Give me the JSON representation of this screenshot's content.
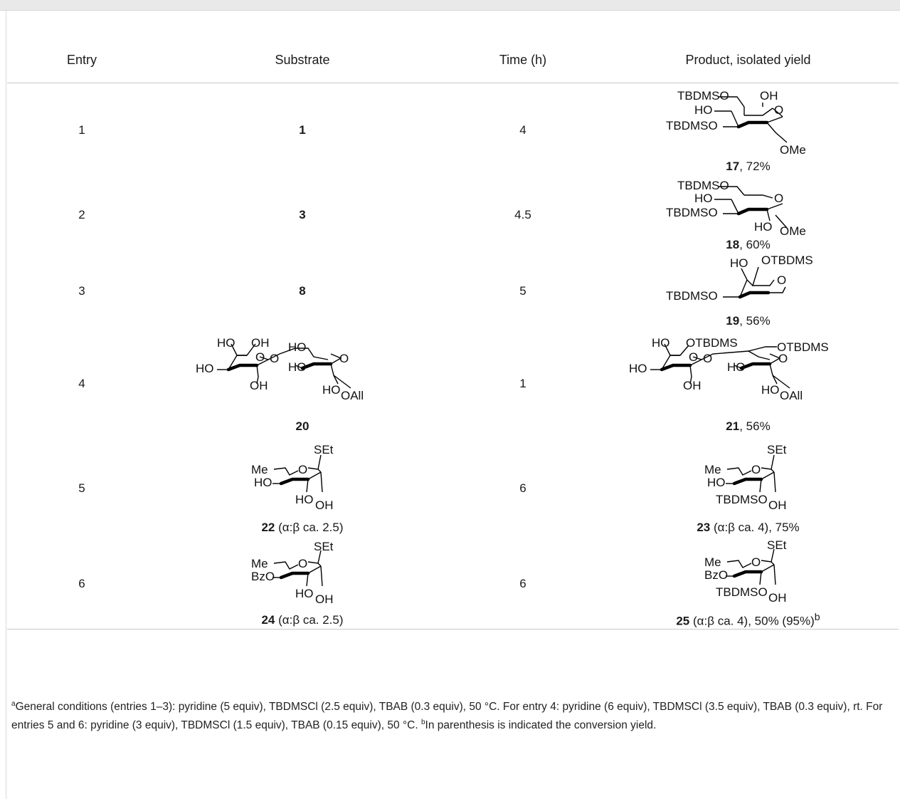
{
  "table": {
    "headers": [
      "Entry",
      "Substrate",
      "Time (h)",
      "Product, isolated yield"
    ],
    "rows": [
      {
        "entry": "1",
        "substrate": "1",
        "time": "4",
        "product": {
          "number": "17",
          "yield": ", 72%",
          "labels": [
            "TBDMSO",
            "OH",
            "HO",
            "O",
            "TBDMSO",
            "OMe"
          ]
        }
      },
      {
        "entry": "2",
        "substrate": "3",
        "time": "4.5",
        "product": {
          "number": "18",
          "yield": ", 60%",
          "labels": [
            "TBDMSO",
            "HO",
            "O",
            "TBDMSO",
            "HO",
            "OMe"
          ]
        }
      },
      {
        "entry": "3",
        "substrate": "8",
        "time": "5",
        "product": {
          "number": "19",
          "yield": ", 56%",
          "labels": [
            "HO",
            "OTBDMS",
            "O",
            "TBDMSO"
          ]
        }
      },
      {
        "entry": "4",
        "time": "1",
        "substrate": {
          "number": "20",
          "labels": [
            "HO",
            "OH",
            "HO",
            "O",
            "OH",
            "O",
            "HO",
            "HO",
            "O",
            "HO",
            "OAll"
          ]
        },
        "product": {
          "number": "21",
          "yield": ", 56%",
          "labels": [
            "HO",
            "OTBDMS",
            "OTBDMS",
            "HO",
            "O",
            "OH",
            "O",
            "HO",
            "O",
            "HO",
            "OAll"
          ]
        }
      },
      {
        "entry": "5",
        "time": "6",
        "substrate": {
          "number": "22",
          "note": " (α:β ca. 2.5)",
          "labels": [
            "SEt",
            "Me",
            "O",
            "HO",
            "HO",
            "OH"
          ]
        },
        "product": {
          "number": "23",
          "note": " (α:β ca. 4), 75%",
          "labels": [
            "SEt",
            "Me",
            "O",
            "HO",
            "TBDMSO",
            "OH"
          ]
        }
      },
      {
        "entry": "6",
        "time": "6",
        "substrate": {
          "number": "24",
          "note": " (α:β ca. 2.5)",
          "labels": [
            "SEt",
            "Me",
            "O",
            "BzO",
            "HO",
            "OH"
          ]
        },
        "product": {
          "number": "25",
          "note": " (α:β ca. 4), 50% (95%)",
          "sup": "b",
          "labels": [
            "SEt",
            "Me",
            "O",
            "BzO",
            "TBDMSO",
            "OH"
          ]
        }
      }
    ]
  },
  "footnote": {
    "sup_a": "a",
    "text_a": "General conditions (entries 1–3): pyridine (5 equiv), TBDMSCl (2.5 equiv), TBAB (0.3 equiv), 50 °C. For entry 4: pyridine (6 equiv), TBDMSCl (3.5 equiv), TBAB (0.3 equiv), rt. For entries 5 and 6: pyridine (3 equiv), TBDMSCl (1.5 equiv), TBAB (0.15 equiv), 50 °C. ",
    "sup_b": "b",
    "text_b": "In parenthesis is indicated the conversion yield."
  }
}
